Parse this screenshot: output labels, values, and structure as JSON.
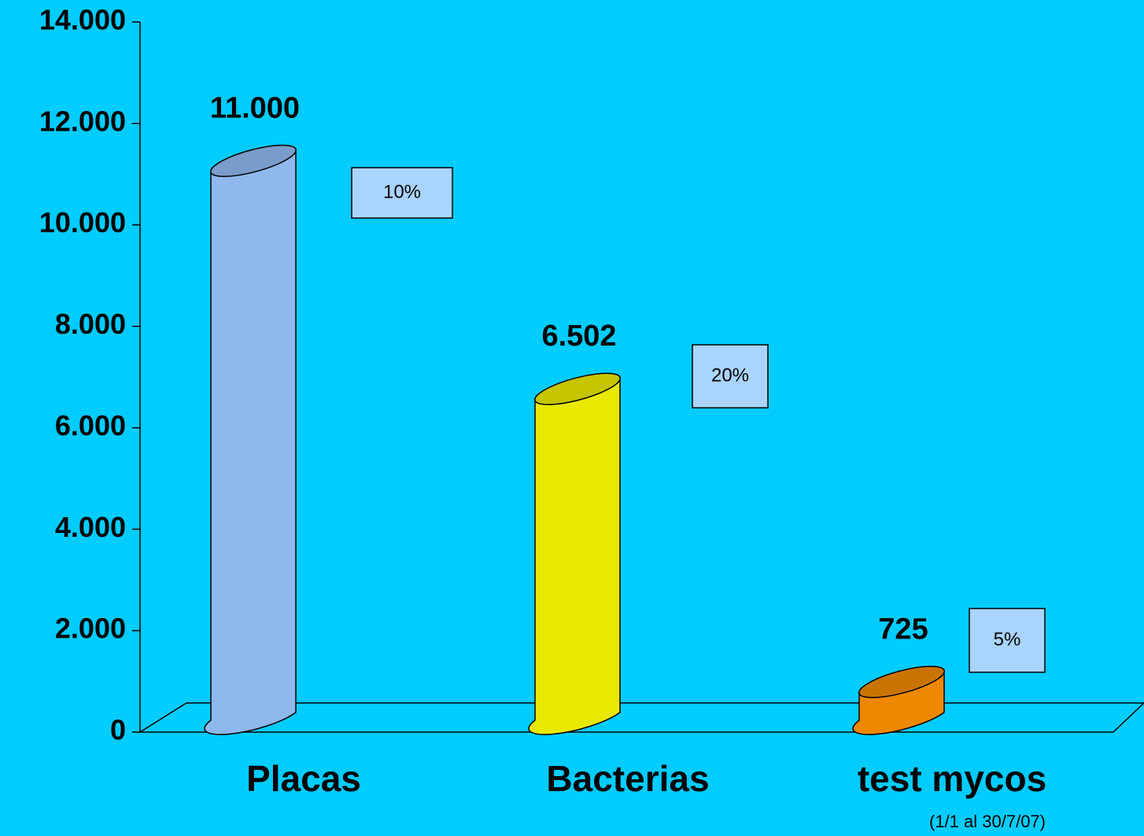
{
  "chart_data": {
    "type": "bar",
    "categories": [
      "Placas",
      "Bacterias",
      "test mycos"
    ],
    "values": [
      11000,
      6502,
      725
    ],
    "value_labels": [
      "11.000",
      "6.502",
      "725"
    ],
    "colors": [
      "#8fb8ee",
      "#e8e800",
      "#ee8800"
    ],
    "ylim": [
      0,
      14000
    ],
    "yticks": [
      0,
      {
        "value": 2000,
        "label": "2.000"
      },
      {
        "value": 4000,
        "label": "4.000"
      },
      {
        "value": 6000,
        "label": "6.000"
      },
      {
        "value": 8000,
        "label": "8.000"
      },
      {
        "value": 10000,
        "label": "10.000"
      },
      {
        "value": 12000,
        "label": "12.000"
      },
      {
        "value": 14000,
        "label": "14.000"
      }
    ],
    "annotations": [
      "10%",
      "20%",
      "5%"
    ],
    "subtitle": "(1/1 al 30/7/07)"
  }
}
